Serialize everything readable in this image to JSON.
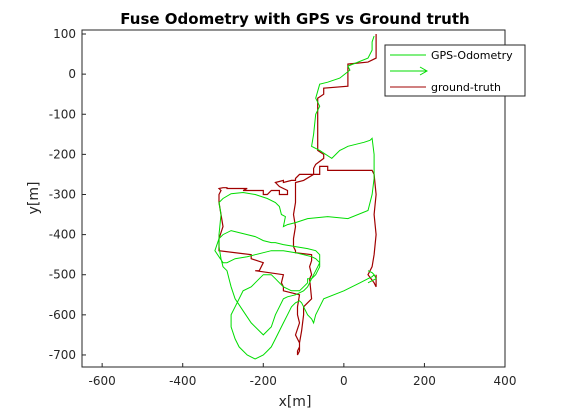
{
  "chart_data": {
    "type": "line",
    "title": "Fuse Odometry with GPS vs Ground truth",
    "xlabel": "x[m]",
    "ylabel": "y[m]",
    "xlim": [
      -650,
      400
    ],
    "ylim": [
      -730,
      110
    ],
    "xticks": [
      -600,
      -400,
      -200,
      0,
      200,
      400
    ],
    "yticks": [
      100,
      0,
      -100,
      -200,
      -300,
      -400,
      -500,
      -600,
      -700
    ],
    "xtick_labels": [
      "-600",
      "-400",
      "-200",
      "0",
      "200",
      "400"
    ],
    "ytick_labels": [
      "100",
      "0",
      "-100",
      "-200",
      "-300",
      "-400",
      "-500",
      "-600",
      "-700"
    ],
    "grid": false,
    "legend_position": "top-right",
    "legend": [
      "GPS-Odometry",
      "ground-truth"
    ],
    "colors": {
      "gps": "#00dd00",
      "truth": "#a00000"
    },
    "series": [
      {
        "name": "ground-truth",
        "color": "#a00000",
        "x": [
          80,
          80,
          60,
          10,
          10,
          -50,
          -50,
          -65,
          -65,
          -50,
          -50,
          -70,
          -75,
          -75,
          -100,
          -120,
          -120,
          -120,
          -125,
          -120,
          -125,
          -125,
          -120,
          -120,
          -80,
          -80,
          -85,
          -80,
          -85,
          -80,
          -90,
          -100,
          -100,
          -105,
          -110,
          -110,
          -115,
          -115,
          -115,
          -110,
          -110,
          -120,
          -110,
          -115,
          -115,
          -110,
          -150,
          -150,
          -155,
          -150,
          -220,
          -210,
          -210,
          -200,
          -230,
          -230,
          -310,
          -310,
          -300,
          -305,
          -310,
          -310,
          -305,
          -310,
          -300,
          -300,
          -300,
          -300,
          -290,
          -290,
          -250,
          -250,
          -240,
          -250,
          -250,
          -200,
          -200,
          -190,
          -180,
          -170,
          -160,
          -160,
          -160,
          -140,
          -140,
          -160,
          -170,
          -150,
          -150,
          -130,
          -120,
          -120,
          -110,
          -60,
          -60,
          -60,
          -40,
          -40,
          -40,
          -10,
          -10,
          -10,
          0,
          30,
          60,
          70,
          75,
          80,
          75,
          80,
          75,
          70,
          60,
          75,
          80,
          80
        ],
        "y": [
          100,
          40,
          30,
          25,
          -30,
          -35,
          -50,
          -60,
          -190,
          -200,
          -210,
          -225,
          -235,
          -250,
          -265,
          -270,
          -295,
          -320,
          -350,
          -380,
          -410,
          -430,
          -440,
          -445,
          -450,
          -465,
          -480,
          -500,
          -510,
          -560,
          -570,
          -580,
          -600,
          -640,
          -670,
          -690,
          -700,
          -700,
          -690,
          -680,
          -670,
          -650,
          -620,
          -600,
          -580,
          -550,
          -540,
          -530,
          -520,
          -500,
          -490,
          -490,
          -490,
          -470,
          -460,
          -450,
          -440,
          -410,
          -380,
          -350,
          -320,
          -300,
          -290,
          -285,
          -283,
          -283,
          -283,
          -283,
          -283,
          -285,
          -285,
          -285,
          -285,
          -290,
          -290,
          -290,
          -300,
          -300,
          -290,
          -290,
          -290,
          -300,
          -300,
          -300,
          -290,
          -280,
          -270,
          -265,
          -270,
          -265,
          -265,
          -260,
          -250,
          -250,
          -240,
          -230,
          -230,
          -240,
          -240,
          -240,
          -240,
          -240,
          -240,
          -240,
          -240,
          -240,
          -250,
          -300,
          -350,
          -400,
          -450,
          -480,
          -500,
          -520,
          -530,
          -500
        ]
      },
      {
        "name": "GPS-Odometry",
        "color": "#00dd00",
        "x": [
          75,
          70,
          70,
          60,
          10,
          15,
          -10,
          -40,
          -60,
          -70,
          -60,
          -70,
          -75,
          -80,
          -60,
          -30,
          -20,
          -10,
          0,
          10,
          30,
          50,
          65,
          70,
          75,
          75,
          70,
          60,
          10,
          -40,
          -90,
          -120,
          -140,
          -150,
          -145,
          -155,
          -160,
          -170,
          -190,
          -220,
          -250,
          -280,
          -300,
          -310,
          -305,
          -310,
          -310,
          -305,
          -300,
          -290,
          -285,
          -280,
          -270,
          -250,
          -230,
          -200,
          -190,
          -180,
          -170,
          -160,
          -150,
          -140,
          -120,
          -110,
          -100,
          -90,
          -80,
          -70,
          -60,
          -60,
          -70,
          -90,
          -120,
          -150,
          -170,
          -180,
          -200,
          -210,
          -220,
          -240,
          -260,
          -280,
          -300,
          -310,
          -320,
          -300,
          -290,
          -280,
          -270,
          -240,
          -220,
          -200,
          -180,
          -150,
          -120,
          -100,
          -80,
          -70,
          -60,
          -60,
          -65,
          -70,
          -80,
          -90,
          -90,
          -100,
          -110,
          -130,
          -150,
          -160,
          -170,
          -180,
          -200,
          -210,
          -220,
          -230,
          -250,
          -260,
          -270,
          -280,
          -280,
          -270,
          -260,
          -240,
          -220,
          -200,
          -190,
          -180,
          -170,
          -160,
          -150,
          -140,
          -130,
          -120,
          -110,
          -105,
          -100,
          -95,
          -90,
          -80,
          -75,
          -70,
          -60,
          -50,
          0,
          40,
          60,
          70,
          75,
          70,
          60,
          60,
          70,
          75,
          80,
          70,
          60
        ],
        "y": [
          95,
          80,
          60,
          40,
          20,
          10,
          -10,
          -20,
          -25,
          -60,
          -80,
          -100,
          -150,
          -180,
          -190,
          -210,
          -200,
          -190,
          -185,
          -180,
          -175,
          -170,
          -165,
          -160,
          -200,
          -260,
          -300,
          -340,
          -360,
          -355,
          -360,
          -370,
          -375,
          -380,
          -355,
          -350,
          -330,
          -320,
          -310,
          -300,
          -295,
          -298,
          -310,
          -320,
          -350,
          -400,
          -430,
          -460,
          -480,
          -490,
          -510,
          -530,
          -560,
          -590,
          -620,
          -650,
          -640,
          -630,
          -600,
          -580,
          -560,
          -555,
          -550,
          -545,
          -540,
          -530,
          -510,
          -490,
          -470,
          -450,
          -440,
          -435,
          -430,
          -425,
          -420,
          -420,
          -415,
          -410,
          -405,
          -400,
          -395,
          -390,
          -400,
          -410,
          -440,
          -470,
          -470,
          -465,
          -460,
          -455,
          -450,
          -445,
          -440,
          -440,
          -445,
          -450,
          -455,
          -460,
          -470,
          -480,
          -490,
          -500,
          -510,
          -510,
          -520,
          -530,
          -540,
          -540,
          -530,
          -520,
          -510,
          -500,
          -500,
          -510,
          -520,
          -530,
          -540,
          -560,
          -580,
          -600,
          -630,
          -660,
          -680,
          -700,
          -710,
          -700,
          -690,
          -680,
          -660,
          -640,
          -620,
          -600,
          -580,
          -570,
          -565,
          -570,
          -580,
          -590,
          -600,
          -610,
          -620,
          -600,
          -580,
          -560,
          -540,
          -520,
          -510,
          -505,
          -500,
          -495,
          -490,
          -490,
          -495,
          -500,
          -510,
          -515,
          -520
        ]
      }
    ]
  }
}
